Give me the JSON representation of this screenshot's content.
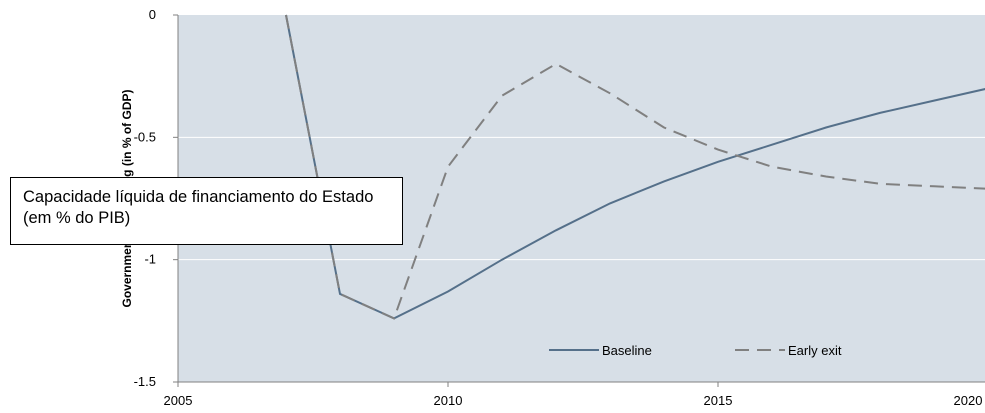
{
  "chart_data": {
    "type": "line",
    "ylabel": "Government net lending (in % of GDP)",
    "ylim": [
      -1.5,
      0
    ],
    "xlim": [
      2005,
      2020
    ],
    "x_ticks": [
      2005,
      2010,
      2015,
      2020
    ],
    "y_ticks": [
      0,
      -0.5,
      -1,
      -1.5
    ],
    "y_tick_labels": [
      "0",
      "-0.5",
      "-1",
      "-1.5"
    ],
    "grid": true,
    "legend_position": "bottom-right",
    "background_color": "#d7dfe7",
    "series": [
      {
        "name": "Baseline",
        "color": "#55708a",
        "style": "solid",
        "points": [
          {
            "x": 2007,
            "y": 0.0
          },
          {
            "x": 2008,
            "y": -1.14
          },
          {
            "x": 2009,
            "y": -1.24
          },
          {
            "x": 2010,
            "y": -1.13
          },
          {
            "x": 2011,
            "y": -1.0
          },
          {
            "x": 2012,
            "y": -0.88
          },
          {
            "x": 2013,
            "y": -0.77
          },
          {
            "x": 2014,
            "y": -0.68
          },
          {
            "x": 2015,
            "y": -0.6
          },
          {
            "x": 2016,
            "y": -0.53
          },
          {
            "x": 2017,
            "y": -0.46
          },
          {
            "x": 2018,
            "y": -0.4
          },
          {
            "x": 2019,
            "y": -0.35
          },
          {
            "x": 2020,
            "y": -0.3
          }
        ]
      },
      {
        "name": "Early exit",
        "color": "#808080",
        "style": "dashed",
        "points": [
          {
            "x": 2007,
            "y": 0.0
          },
          {
            "x": 2008,
            "y": -1.14
          },
          {
            "x": 2009,
            "y": -1.24
          },
          {
            "x": 2010,
            "y": -0.62
          },
          {
            "x": 2011,
            "y": -0.33
          },
          {
            "x": 2012,
            "y": -0.2
          },
          {
            "x": 2013,
            "y": -0.32
          },
          {
            "x": 2014,
            "y": -0.46
          },
          {
            "x": 2015,
            "y": -0.55
          },
          {
            "x": 2016,
            "y": -0.62
          },
          {
            "x": 2017,
            "y": -0.66
          },
          {
            "x": 2018,
            "y": -0.69
          },
          {
            "x": 2019,
            "y": -0.7
          },
          {
            "x": 2020,
            "y": -0.71
          }
        ]
      }
    ]
  },
  "annotation": {
    "text": "Capacidade líquida de financiamento do Estado (em % do PIB)"
  }
}
